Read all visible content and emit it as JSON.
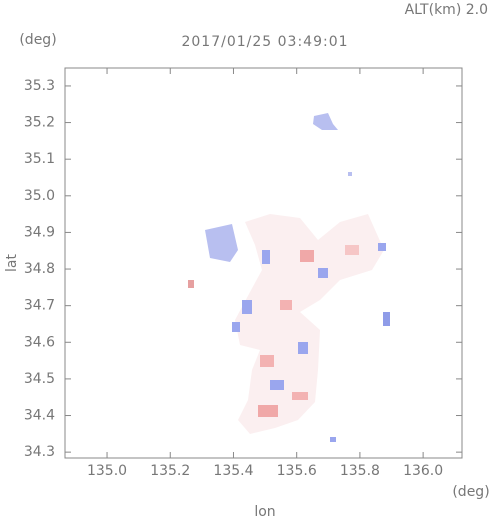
{
  "chart_data": {
    "type": "map",
    "title": "2017/01/25 03:49:01",
    "subtitle": "ALT(km) 2.0",
    "y_unit": "(deg)",
    "x_unit": "(deg)",
    "xlabel": "lon",
    "ylabel": "lat",
    "xlim": [
      134.867,
      136.123
    ],
    "ylim": [
      34.284,
      35.349
    ],
    "xticks": [
      {
        "value": 135,
        "label": "135.0"
      },
      135.2,
      135.4,
      135.6,
      135.8,
      {
        "value": 136,
        "label": "136.0"
      }
    ],
    "yticks": [
      34.3,
      34.4,
      34.5,
      34.6,
      34.7,
      34.8,
      34.9,
      {
        "value": 35,
        "label": "35.0"
      },
      35.1,
      35.2,
      35.3
    ]
  }
}
